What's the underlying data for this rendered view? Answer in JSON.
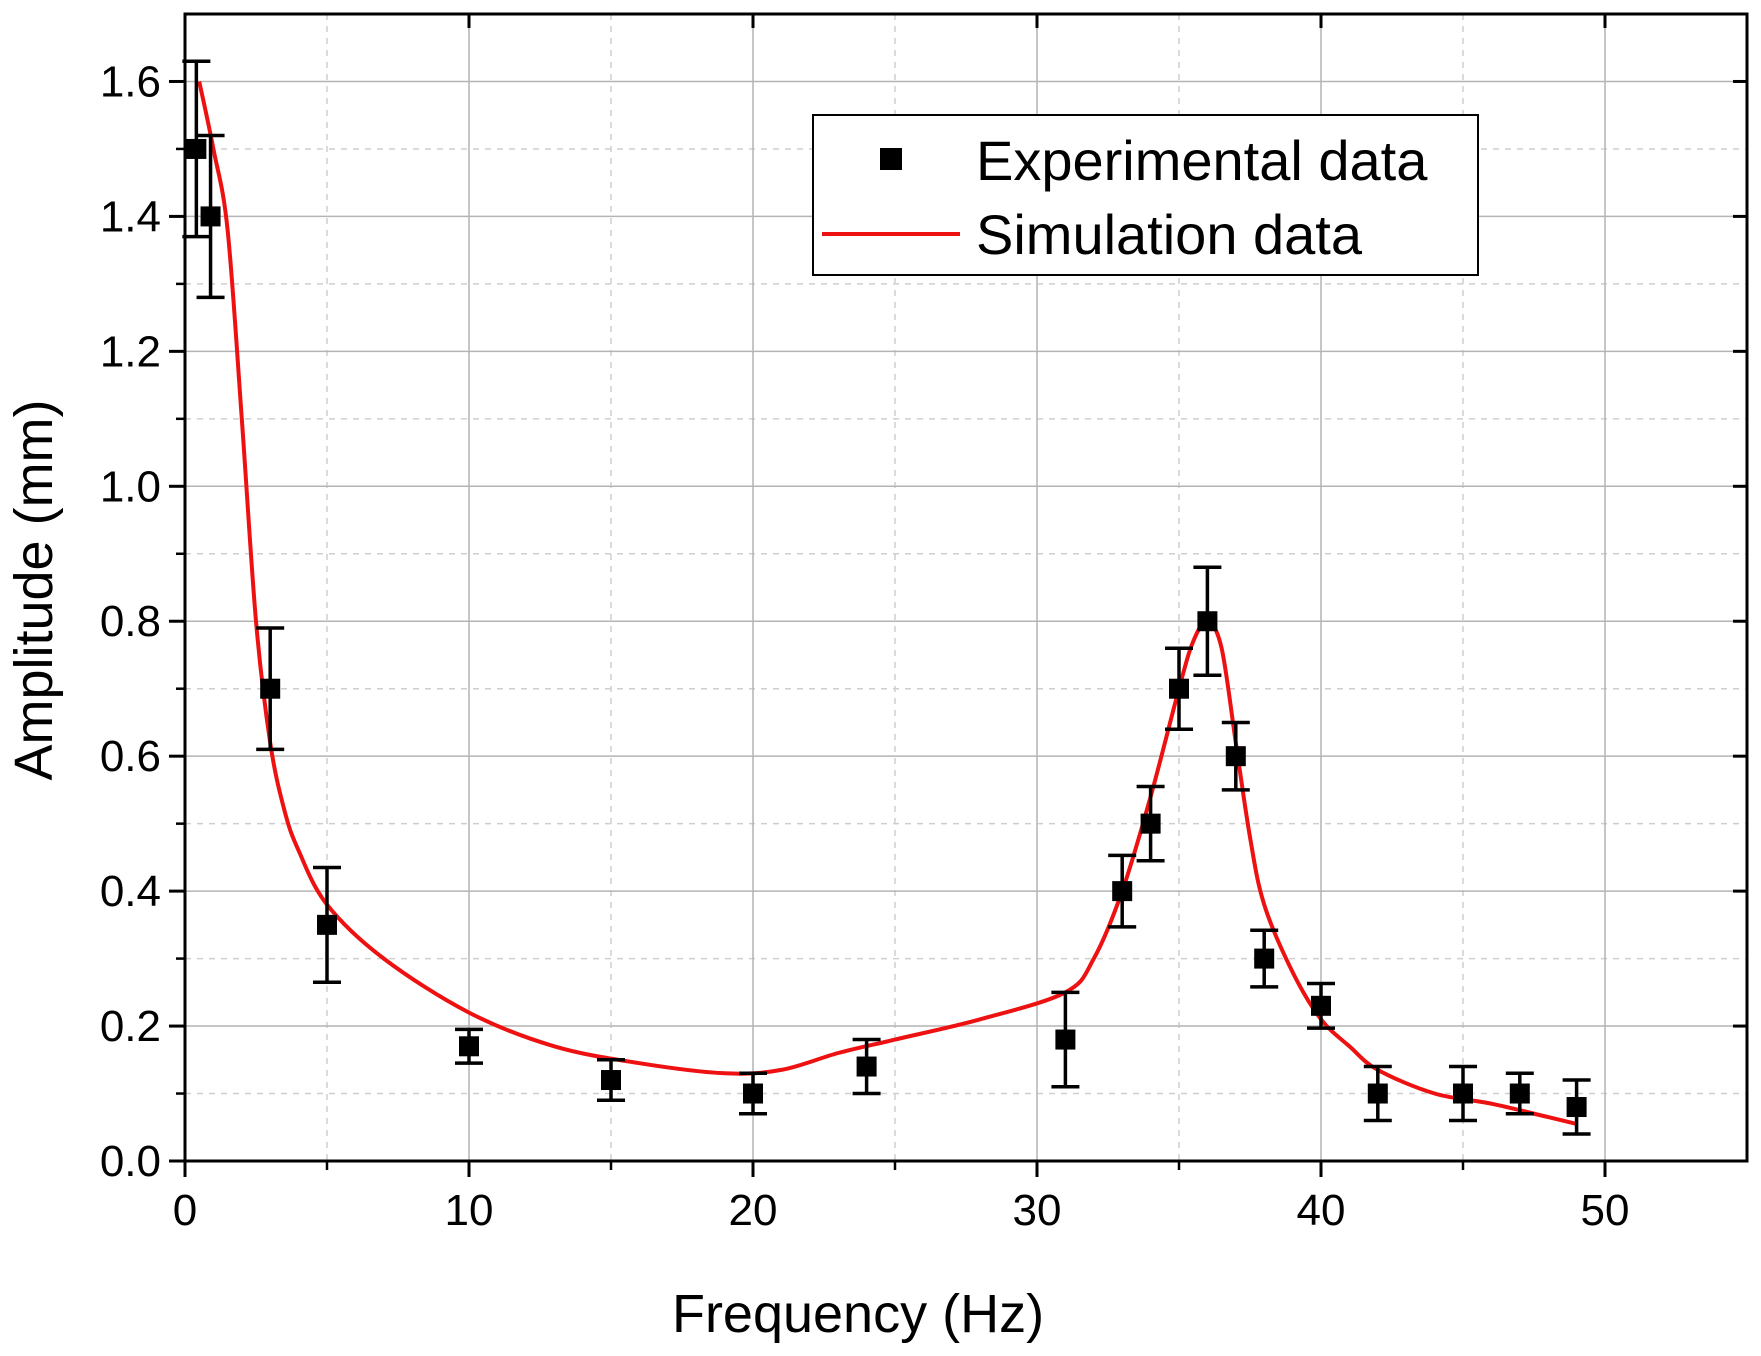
{
  "chart_data": {
    "type": "scatter",
    "title": "",
    "xlabel": "Frequency (Hz)",
    "ylabel": "Amplitude (mm)",
    "xlim": [
      0,
      55
    ],
    "ylim": [
      0,
      1.7
    ],
    "x_ticks": [
      0,
      10,
      20,
      30,
      40,
      50
    ],
    "x_tick_labels": [
      "0",
      "10",
      "20",
      "30",
      "40",
      "50"
    ],
    "y_ticks": [
      0.0,
      0.2,
      0.4,
      0.6,
      0.8,
      1.0,
      1.2,
      1.4,
      1.6
    ],
    "y_tick_labels": [
      "0.0",
      "0.2",
      "0.4",
      "0.6",
      "0.8",
      "1.0",
      "1.2",
      "1.4",
      "1.6"
    ],
    "grid": true,
    "legend_position": "top-right",
    "series": [
      {
        "name": "Experimental data",
        "kind": "scatter-errorbar",
        "color": "#000000",
        "marker": "square",
        "points": [
          {
            "x": 0.4,
            "y": 1.5,
            "err": 0.13
          },
          {
            "x": 0.9,
            "y": 1.4,
            "err": 0.12
          },
          {
            "x": 3.0,
            "y": 0.7,
            "err": 0.09
          },
          {
            "x": 5.0,
            "y": 0.35,
            "err": 0.085
          },
          {
            "x": 10.0,
            "y": 0.17,
            "err": 0.025
          },
          {
            "x": 15.0,
            "y": 0.12,
            "err": 0.03
          },
          {
            "x": 20.0,
            "y": 0.1,
            "err": 0.03
          },
          {
            "x": 24.0,
            "y": 0.14,
            "err": 0.04
          },
          {
            "x": 31.0,
            "y": 0.18,
            "err": 0.07
          },
          {
            "x": 33.0,
            "y": 0.4,
            "err": 0.053
          },
          {
            "x": 34.0,
            "y": 0.5,
            "err": 0.055
          },
          {
            "x": 35.0,
            "y": 0.7,
            "err": 0.06
          },
          {
            "x": 36.0,
            "y": 0.8,
            "err": 0.08
          },
          {
            "x": 37.0,
            "y": 0.6,
            "err": 0.05
          },
          {
            "x": 38.0,
            "y": 0.3,
            "err": 0.042
          },
          {
            "x": 40.0,
            "y": 0.23,
            "err": 0.033
          },
          {
            "x": 42.0,
            "y": 0.1,
            "err": 0.04
          },
          {
            "x": 45.0,
            "y": 0.1,
            "err": 0.04
          },
          {
            "x": 47.0,
            "y": 0.1,
            "err": 0.03
          },
          {
            "x": 49.0,
            "y": 0.08,
            "err": 0.04
          }
        ]
      },
      {
        "name": "Simulation data",
        "kind": "line",
        "color": "#ee1111",
        "points": [
          {
            "x": 0.5,
            "y": 1.6
          },
          {
            "x": 1.0,
            "y": 1.5
          },
          {
            "x": 1.5,
            "y": 1.38
          },
          {
            "x": 2.0,
            "y": 1.1
          },
          {
            "x": 2.5,
            "y": 0.8
          },
          {
            "x": 3.0,
            "y": 0.62
          },
          {
            "x": 3.5,
            "y": 0.52
          },
          {
            "x": 4.0,
            "y": 0.46
          },
          {
            "x": 5.0,
            "y": 0.38
          },
          {
            "x": 7.0,
            "y": 0.3
          },
          {
            "x": 10.0,
            "y": 0.22
          },
          {
            "x": 13.0,
            "y": 0.17
          },
          {
            "x": 16.0,
            "y": 0.145
          },
          {
            "x": 19.0,
            "y": 0.13
          },
          {
            "x": 21.0,
            "y": 0.135
          },
          {
            "x": 23.0,
            "y": 0.16
          },
          {
            "x": 25.0,
            "y": 0.18
          },
          {
            "x": 28.0,
            "y": 0.21
          },
          {
            "x": 31.0,
            "y": 0.25
          },
          {
            "x": 32.0,
            "y": 0.3
          },
          {
            "x": 33.0,
            "y": 0.4
          },
          {
            "x": 34.0,
            "y": 0.54
          },
          {
            "x": 35.0,
            "y": 0.7
          },
          {
            "x": 35.5,
            "y": 0.77
          },
          {
            "x": 36.0,
            "y": 0.8
          },
          {
            "x": 36.5,
            "y": 0.76
          },
          {
            "x": 37.0,
            "y": 0.62
          },
          {
            "x": 37.5,
            "y": 0.48
          },
          {
            "x": 38.0,
            "y": 0.38
          },
          {
            "x": 39.0,
            "y": 0.28
          },
          {
            "x": 40.0,
            "y": 0.21
          },
          {
            "x": 41.0,
            "y": 0.17
          },
          {
            "x": 42.0,
            "y": 0.135
          },
          {
            "x": 44.0,
            "y": 0.1
          },
          {
            "x": 46.0,
            "y": 0.085
          },
          {
            "x": 48.0,
            "y": 0.065
          },
          {
            "x": 49.0,
            "y": 0.055
          }
        ]
      }
    ]
  }
}
